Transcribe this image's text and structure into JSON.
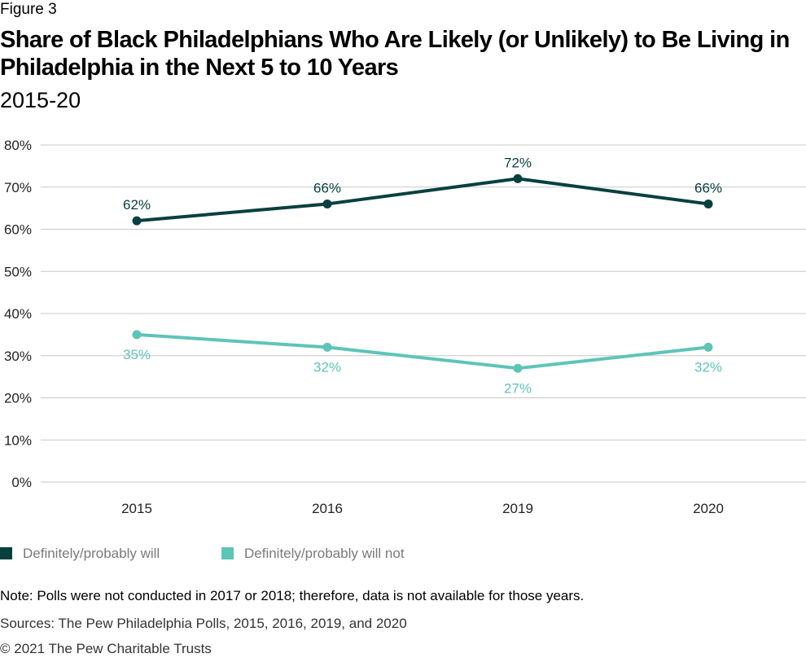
{
  "figure_label": "Figure 3",
  "title": "Share of Black Philadelphians Who Are Likely (or Unlikely) to Be Living in Philadelphia in the Next 5 to 10 Years",
  "subtitle": "2015-20",
  "note": "Note: Polls were not conducted in 2017 or 2018; therefore, data is not available for those years.",
  "sources": "Sources: The Pew Philadelphia Polls, 2015, 2016, 2019, and 2020",
  "copyright": "© 2021 The Pew Charitable Trusts",
  "legend": [
    {
      "label": "Definitely/probably will",
      "color": "#08403f"
    },
    {
      "label": "Definitely/probably will not",
      "color": "#5ec4b8"
    }
  ],
  "chart_data": {
    "type": "line",
    "categories": [
      "2015",
      "2016",
      "2019",
      "2020"
    ],
    "series": [
      {
        "name": "Definitely/probably will",
        "values": [
          62,
          66,
          72,
          66
        ],
        "labels": [
          "62%",
          "66%",
          "72%",
          "66%"
        ],
        "color": "#08403f",
        "label_position": "above"
      },
      {
        "name": "Definitely/probably will not",
        "values": [
          35,
          32,
          27,
          32
        ],
        "labels": [
          "35%",
          "32%",
          "27%",
          "32%"
        ],
        "color": "#5ec4b8",
        "label_position": "below"
      }
    ],
    "ylim": [
      0,
      80
    ],
    "yticks": [
      0,
      10,
      20,
      30,
      40,
      50,
      60,
      70,
      80
    ],
    "ytick_labels": [
      "0%",
      "10%",
      "20%",
      "30%",
      "40%",
      "50%",
      "60%",
      "70%",
      "80%"
    ],
    "grid": true,
    "legend_position": "bottom-left",
    "gridline_color": "#c8c8c8"
  }
}
